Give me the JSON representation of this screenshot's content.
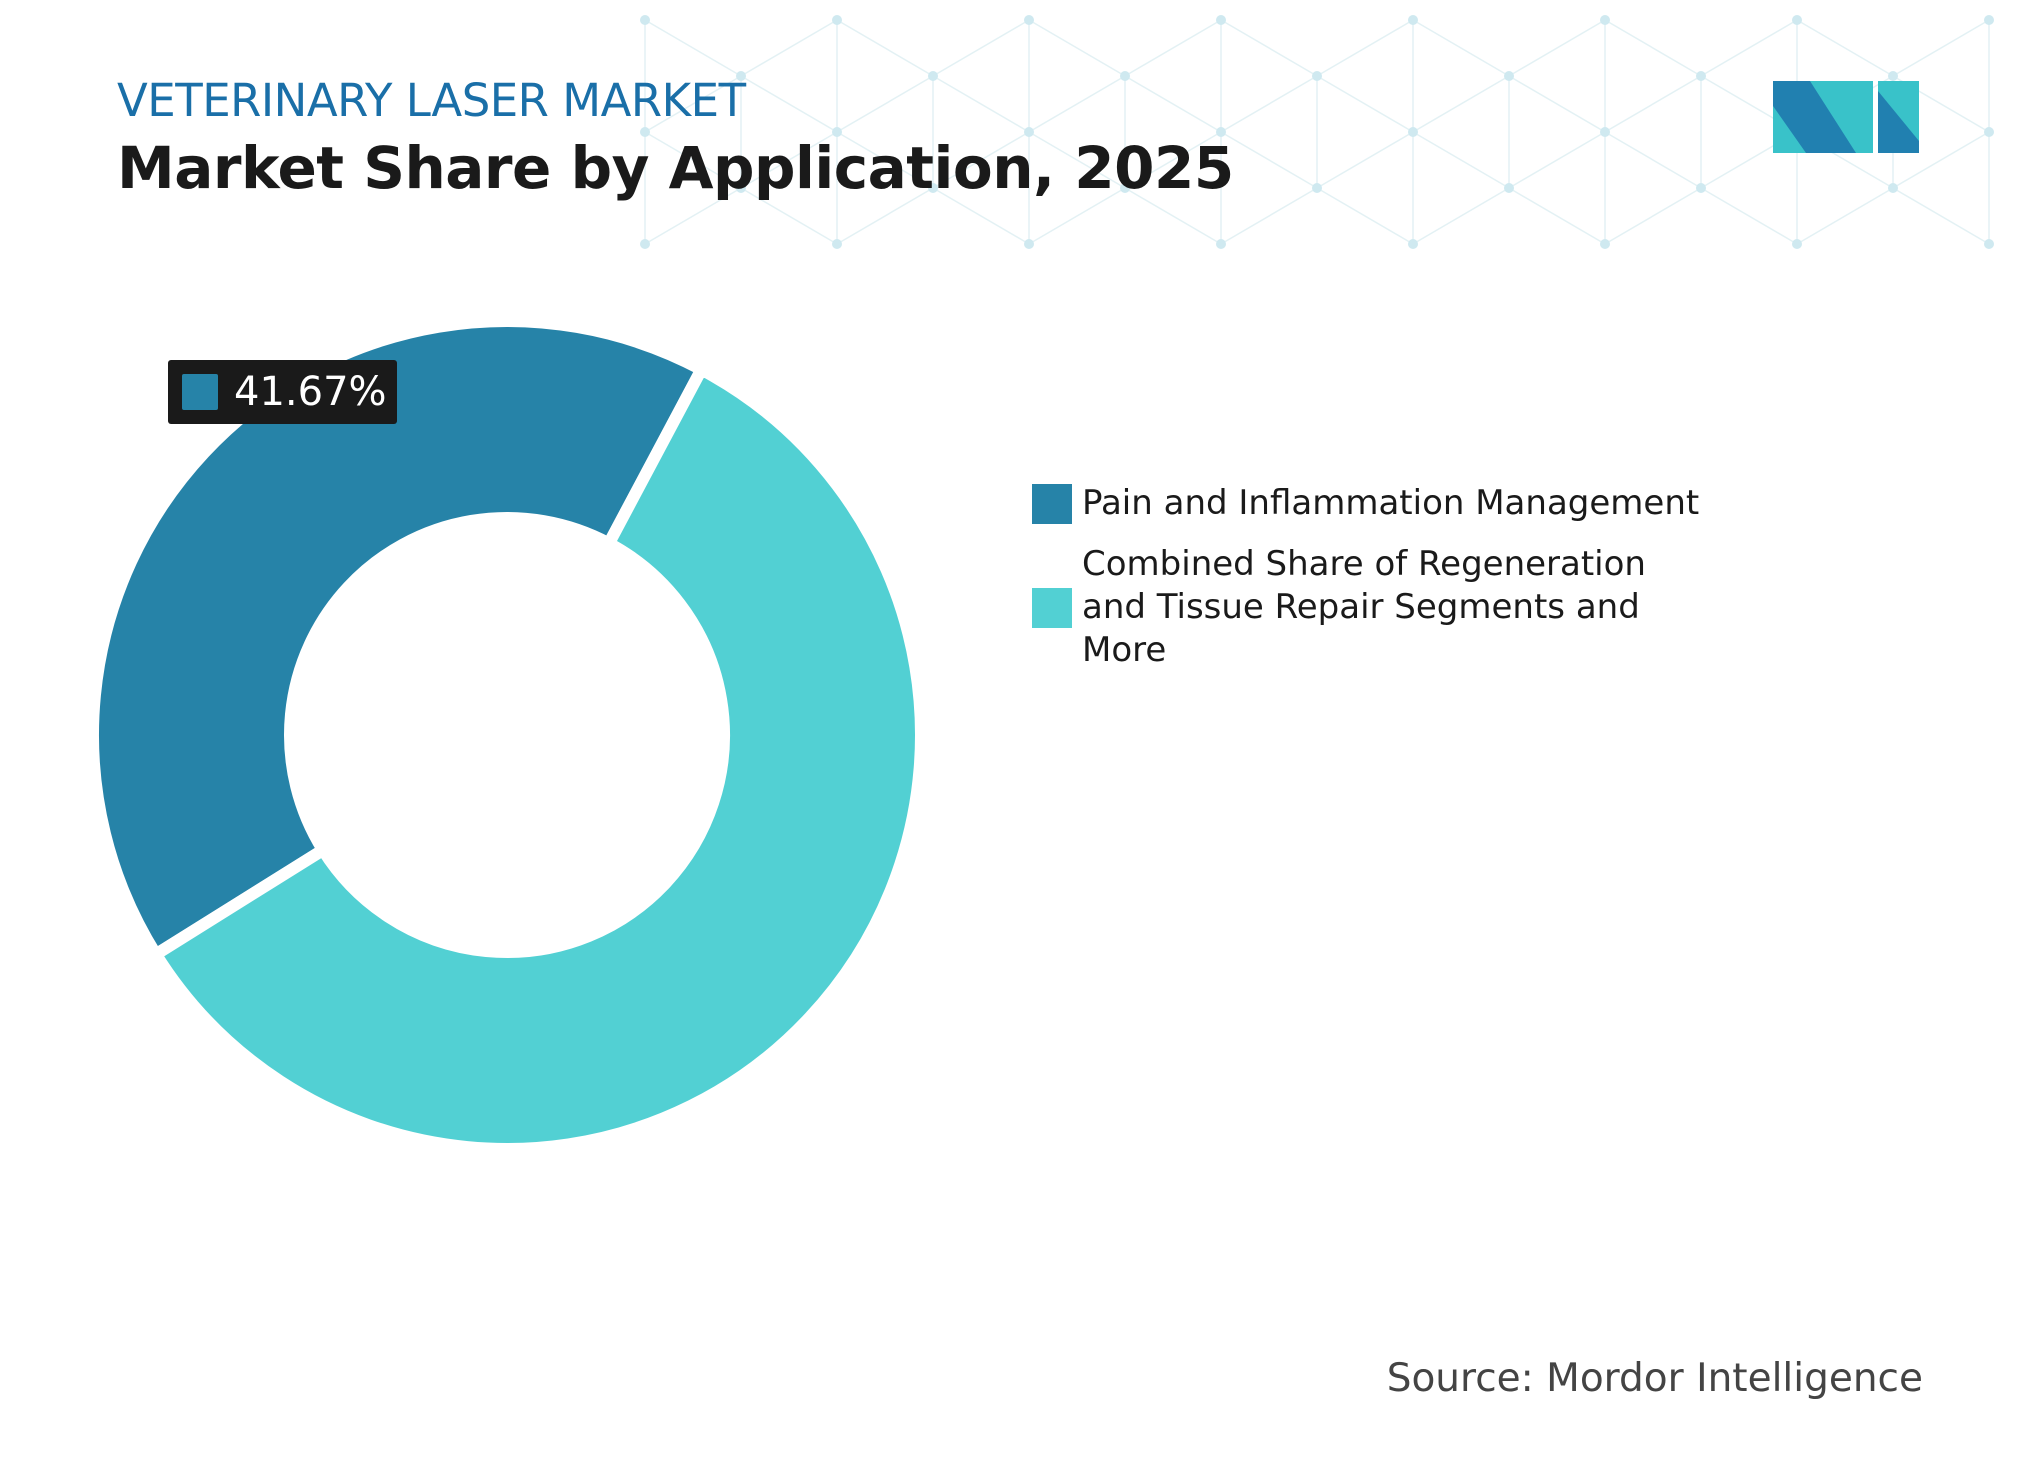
{
  "header": {
    "kicker": "VETERINARY LASER MARKET",
    "title": "Market Share by Application, 2025"
  },
  "chart_data": {
    "type": "pie",
    "variant": "donut",
    "categories": [
      "Pain and Inflammation Management",
      "Combined Share of Regeneration and Tissue Repair Segments and More"
    ],
    "values": [
      41.67,
      58.33
    ],
    "colors": [
      "#2683a8",
      "#52d0d3"
    ],
    "data_labels": [
      "41.67%"
    ],
    "legend_position": "right"
  },
  "source": "Source: Mordor Intelligence",
  "colors": {
    "accent": "#1a6fa8",
    "dark_segment": "#2683a8",
    "light_segment": "#52d0d3"
  }
}
